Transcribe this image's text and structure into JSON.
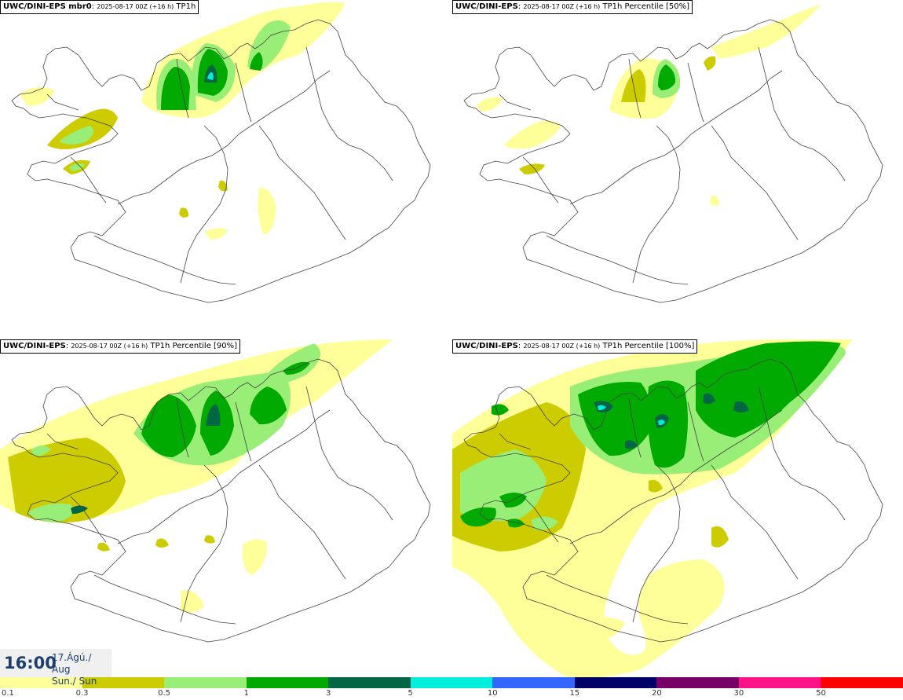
{
  "panels": [
    {
      "model": "UWC/DINI-EPS mbr0",
      "run": "2025-08-17 00Z (+16 h)",
      "field": "TP1h"
    },
    {
      "model": "UWC/DINI-EPS",
      "run": "2025-08-17 00Z (+16 h)",
      "field": "TP1h Percentile [50%]"
    },
    {
      "model": "UWC/DINI-EPS",
      "run": "2025-08-17 00Z (+16 h)",
      "field": "TP1h Percentile [90%]"
    },
    {
      "model": "UWC/DINI-EPS",
      "run": "2025-08-17 00Z (+16 h)",
      "field": "TP1h Percentile [100%]"
    }
  ],
  "valid_time": {
    "hour": "16:00",
    "date_line1": "17.Ágú./ Aug",
    "date_line2": "Sun./ Sun"
  },
  "legend": {
    "colors": [
      "#ffff99",
      "#cccc00",
      "#99ee77",
      "#00aa00",
      "#006644",
      "#00eedd",
      "#3366ff",
      "#000066",
      "#770066",
      "#ff1188",
      "#ff0000"
    ],
    "ticks": [
      "0.1",
      "0.3",
      "0.5",
      "1",
      "3",
      "5",
      "10",
      "15",
      "20",
      "30",
      "50"
    ]
  }
}
